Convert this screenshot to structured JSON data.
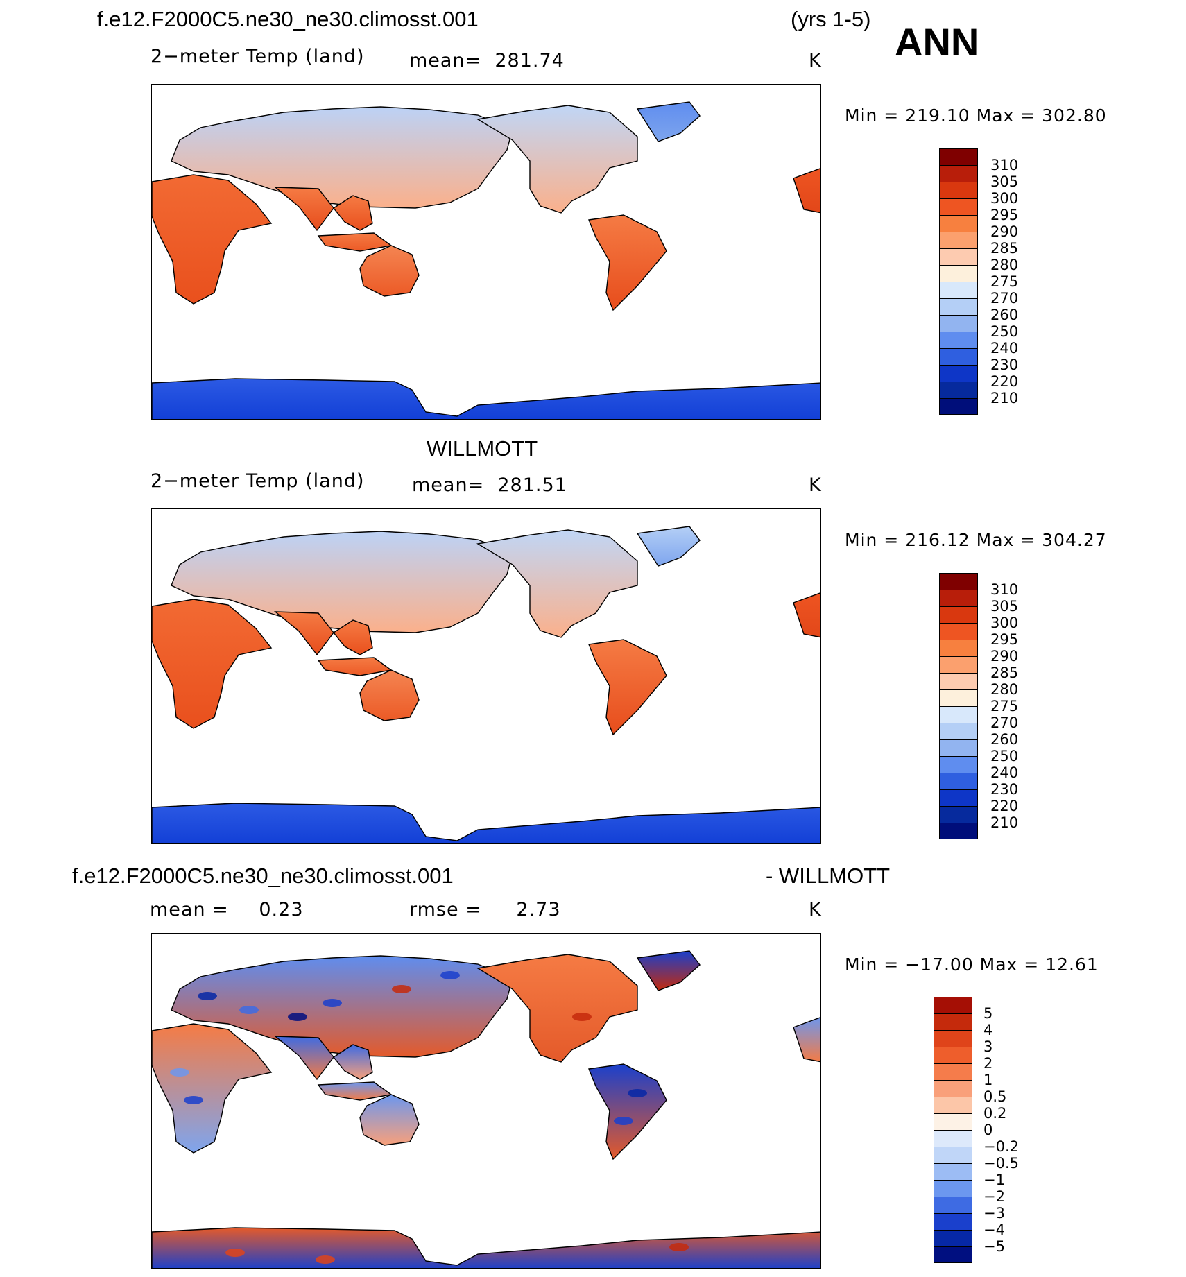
{
  "header": {
    "case_name": "f.e12.F2000C5.ne30_ne30.climosst.001",
    "years": "(yrs 1-5)",
    "season": "ANN"
  },
  "panels": [
    {
      "id": "model",
      "title": "",
      "variable": "2−meter Temp (land)",
      "mean_label": "mean=",
      "mean_value": "281.74",
      "units": "K",
      "minmax": "Min  =  219.10  Max  =  302.80",
      "colorbar": [
        "310",
        "305",
        "300",
        "295",
        "290",
        "285",
        "280",
        "275",
        "270",
        "260",
        "250",
        "240",
        "230",
        "220",
        "210"
      ],
      "colors": [
        "#7f0000",
        "#b81e0a",
        "#d9380f",
        "#ee5522",
        "#f7803f",
        "#fba06e",
        "#fdcbb0",
        "#fdf0dc",
        "#d8e8fb",
        "#b4cff6",
        "#92b4f0",
        "#5f8def",
        "#2f5fe0",
        "#0e36c7",
        "#062a9d",
        "#000e7a"
      ]
    },
    {
      "id": "obs",
      "title": "WILLMOTT",
      "variable": "2−meter Temp (land)",
      "mean_label": "mean=",
      "mean_value": "281.51",
      "units": "K",
      "minmax": "Min  =  216.12  Max  =  304.27",
      "colorbar": [
        "310",
        "305",
        "300",
        "295",
        "290",
        "285",
        "280",
        "275",
        "270",
        "260",
        "250",
        "240",
        "230",
        "220",
        "210"
      ],
      "colors": [
        "#7f0000",
        "#b81e0a",
        "#d9380f",
        "#ee5522",
        "#f7803f",
        "#fba06e",
        "#fdcbb0",
        "#fdf0dc",
        "#d8e8fb",
        "#b4cff6",
        "#92b4f0",
        "#5f8def",
        "#2f5fe0",
        "#0e36c7",
        "#062a9d",
        "#000e7a"
      ]
    },
    {
      "id": "diff",
      "title_left": "f.e12.F2000C5.ne30_ne30.climosst.001",
      "title_right": "- WILLMOTT",
      "mean_label": "mean  =",
      "mean_value": "0.23",
      "rmse_label": "rmse  =",
      "rmse_value": "2.73",
      "units": "K",
      "minmax": "Min  =  −17.00  Max  =    12.61",
      "colorbar": [
        "5",
        "4",
        "3",
        "2",
        "1",
        "0.5",
        "0.2",
        "0",
        "−0.2",
        "−0.5",
        "−1",
        "−2",
        "−3",
        "−4",
        "−5"
      ],
      "colors": [
        "#a50f05",
        "#c52a0c",
        "#df441a",
        "#ee5e2c",
        "#f57c4b",
        "#f9a07a",
        "#fcc6a8",
        "#fdf2e6",
        "#dde9fb",
        "#c0d6f8",
        "#9cbcf4",
        "#6c97ef",
        "#3e6be3",
        "#1a40cc",
        "#0628a6",
        "#000f80"
      ]
    }
  ]
}
